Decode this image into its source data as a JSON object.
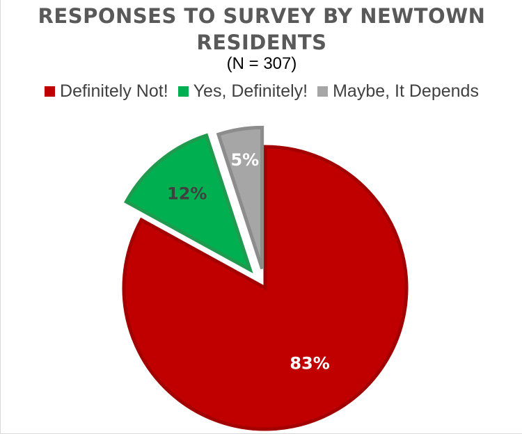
{
  "chart_data": {
    "type": "pie",
    "title_lines": [
      "RESPONSES TO SURVEY BY NEWTOWN",
      "RESIDENTS"
    ],
    "subtitle": "(N = 307)",
    "legend_position": "top",
    "slices": [
      {
        "name": "Definitely Not!",
        "value": 83,
        "label": "83%",
        "color": "#C00000",
        "border": "#A30000",
        "exploded": false,
        "label_color": "#FFFFFF"
      },
      {
        "name": "Yes, Definitely!",
        "value": 12,
        "label": "12%",
        "color": "#00B050",
        "border": "#209A4E",
        "exploded": true,
        "label_color": "#404040"
      },
      {
        "name": "Maybe, It Depends",
        "value": 5,
        "label": "5%",
        "color": "#A6A6A6",
        "border": "#8C8C8C",
        "exploded": true,
        "label_color": "#FFFFFF"
      }
    ]
  }
}
